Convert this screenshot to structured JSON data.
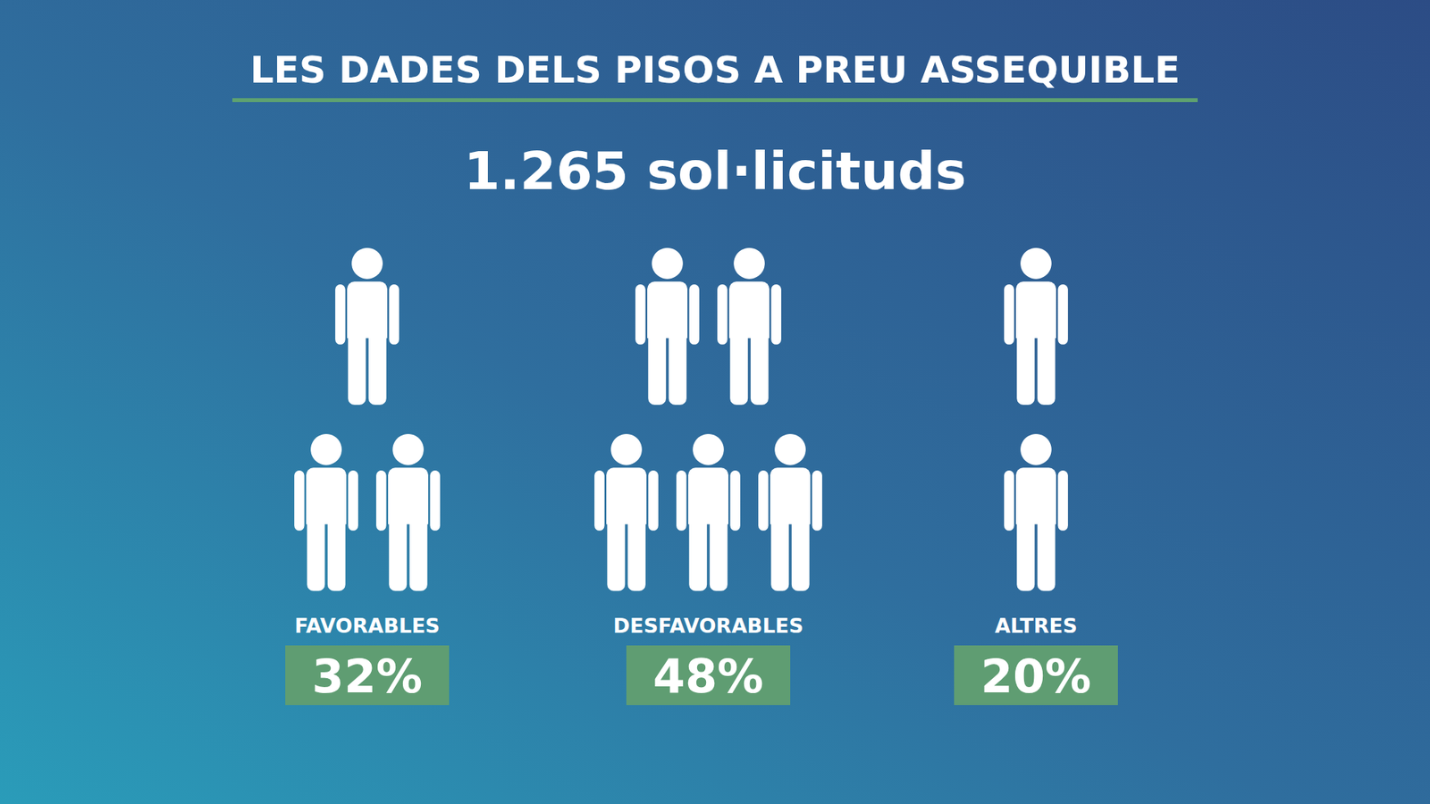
{
  "chart_data": {
    "type": "pictogram",
    "title": "LES DADES DELS PISOS A PREU ASSEQUIBLE",
    "subtitle": "1.265 sol·licituds",
    "categories": [
      "FAVORABLES",
      "DESFAVORABLES",
      "ALTRES"
    ],
    "values": [
      32,
      48,
      20
    ],
    "value_labels": [
      "32%",
      "48%",
      "20%"
    ],
    "icons": [
      3,
      5,
      2
    ],
    "color": "#ffffff",
    "data_labels": true
  }
}
